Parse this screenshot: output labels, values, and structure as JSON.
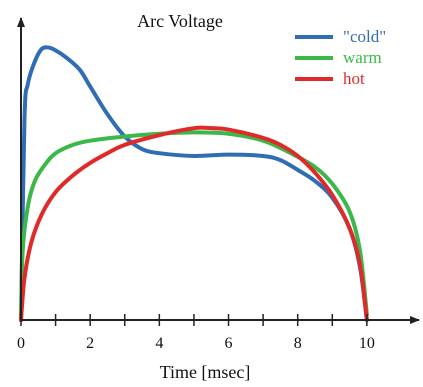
{
  "chart_data": {
    "type": "line",
    "title": "Arc Voltage",
    "xlabel": "Time [msec]",
    "ylabel": "",
    "xlim": [
      0,
      10.9
    ],
    "ylim": [
      0,
      1.0
    ],
    "x_ticks": [
      0,
      1,
      2,
      3,
      4,
      5,
      6,
      7,
      8,
      9,
      10
    ],
    "x_tick_labels": [
      "0",
      "",
      "2",
      "",
      "4",
      "",
      "6",
      "",
      "8",
      "",
      "10"
    ],
    "grid": false,
    "legend_position": "top-right",
    "series": [
      {
        "name": "\"cold\"",
        "color": "#2f6db5",
        "x": [
          0,
          0.1,
          0.2,
          0.4,
          0.6,
          0.8,
          1.0,
          1.3,
          1.7,
          2.0,
          2.5,
          3.0,
          3.5,
          4.0,
          5.0,
          6.0,
          7.0,
          7.5,
          8.0,
          8.5,
          9.0,
          9.5,
          9.8,
          10.0
        ],
        "y": [
          0.0,
          0.72,
          0.85,
          0.93,
          0.975,
          0.98,
          0.97,
          0.945,
          0.9,
          0.84,
          0.74,
          0.66,
          0.615,
          0.6,
          0.59,
          0.595,
          0.59,
          0.575,
          0.54,
          0.5,
          0.44,
          0.33,
          0.19,
          0.0
        ]
      },
      {
        "name": "warm",
        "color": "#3cb84a",
        "x": [
          0,
          0.05,
          0.2,
          0.4,
          0.7,
          1.0,
          1.5,
          2.0,
          3.0,
          4.0,
          5.0,
          6.0,
          7.0,
          7.8,
          8.5,
          9.0,
          9.5,
          9.8,
          10.0
        ],
        "y": [
          0.0,
          0.25,
          0.41,
          0.5,
          0.56,
          0.6,
          0.63,
          0.645,
          0.66,
          0.67,
          0.675,
          0.67,
          0.645,
          0.6,
          0.55,
          0.49,
          0.39,
          0.25,
          0.02
        ]
      },
      {
        "name": "hot",
        "color": "#e02a2a",
        "x": [
          0,
          0.1,
          0.3,
          0.6,
          1.0,
          1.5,
          2.0,
          2.5,
          3.0,
          4.0,
          5.0,
          5.5,
          6.0,
          7.0,
          7.5,
          8.0,
          8.5,
          9.0,
          9.5,
          9.8,
          10.0
        ],
        "y": [
          0.0,
          0.15,
          0.28,
          0.38,
          0.46,
          0.52,
          0.565,
          0.6,
          0.63,
          0.665,
          0.69,
          0.69,
          0.685,
          0.655,
          0.63,
          0.59,
          0.53,
          0.45,
          0.33,
          0.2,
          0.0
        ]
      }
    ]
  }
}
